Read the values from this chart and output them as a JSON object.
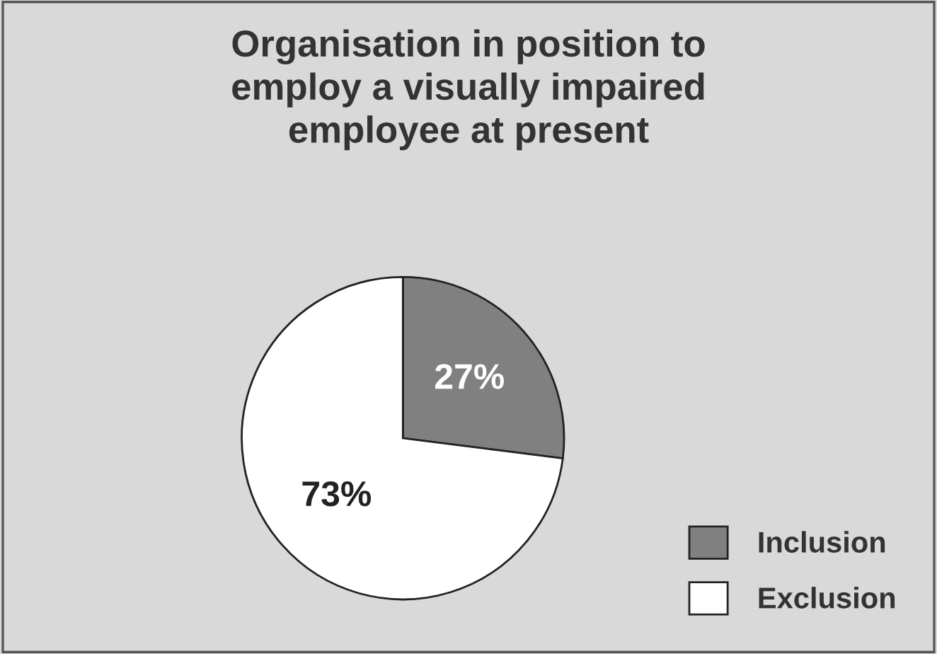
{
  "chart_data": {
    "type": "pie",
    "title": "Organisation in position to\nemploy a visually impaired\nemployee at present",
    "categories": [
      "Inclusion",
      "Exclusion"
    ],
    "values": [
      27,
      73
    ],
    "colors": [
      "#808080",
      "#ffffff"
    ],
    "value_labels": [
      "27%",
      "73%"
    ],
    "legend": "bottom right"
  }
}
